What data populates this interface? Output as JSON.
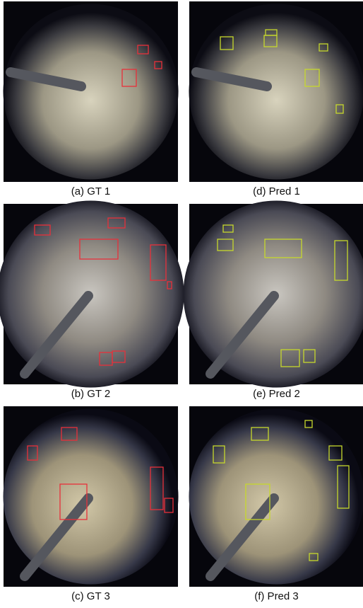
{
  "figure": {
    "panels": [
      {
        "caption": "(a) GT 1"
      },
      {
        "caption": "(d) Pred 1"
      },
      {
        "caption": "(b) GT 2"
      },
      {
        "caption": "(e) Pred 2"
      },
      {
        "caption": "(c) GT 3"
      },
      {
        "caption": "(f) Pred 3"
      }
    ]
  }
}
